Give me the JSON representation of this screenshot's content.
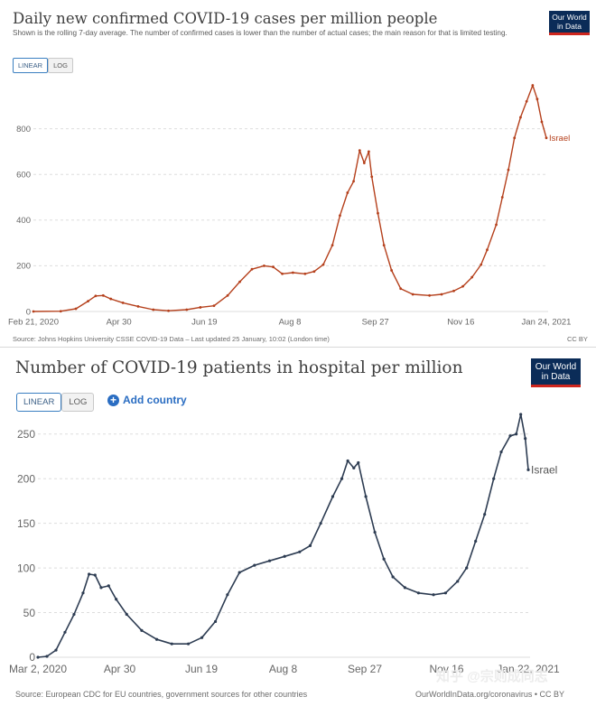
{
  "chart_data": [
    {
      "type": "line",
      "title": "Daily new confirmed COVID-19 cases per million people",
      "subtitle": "Shown is the rolling 7-day average. The number of confirmed cases is lower than the number of actual cases; the main reason for that is limited testing.",
      "scale_options": [
        "LINEAR",
        "LOG"
      ],
      "selected_scale": "LINEAR",
      "x_tick_labels": [
        "Feb 21, 2020",
        "Apr 30",
        "Jun 19",
        "Aug 8",
        "Sep 27",
        "Nov 16",
        "Jan 24, 2021"
      ],
      "y_ticks": [
        0,
        200,
        400,
        600,
        800
      ],
      "ylim": [
        0,
        1000
      ],
      "grid": "horizontal-dashed",
      "series": [
        {
          "name": "Israel",
          "color": "#b5401c",
          "points": [
            [
              "2020-02-21",
              0
            ],
            [
              "2020-03-10",
              1
            ],
            [
              "2020-03-20",
              12
            ],
            [
              "2020-03-28",
              45
            ],
            [
              "2020-04-02",
              68
            ],
            [
              "2020-04-07",
              70
            ],
            [
              "2020-04-12",
              55
            ],
            [
              "2020-04-20",
              38
            ],
            [
              "2020-04-30",
              22
            ],
            [
              "2020-05-10",
              8
            ],
            [
              "2020-05-20",
              3
            ],
            [
              "2020-06-01",
              8
            ],
            [
              "2020-06-10",
              18
            ],
            [
              "2020-06-19",
              25
            ],
            [
              "2020-06-28",
              70
            ],
            [
              "2020-07-06",
              130
            ],
            [
              "2020-07-14",
              185
            ],
            [
              "2020-07-22",
              200
            ],
            [
              "2020-07-28",
              195
            ],
            [
              "2020-08-03",
              165
            ],
            [
              "2020-08-10",
              170
            ],
            [
              "2020-08-18",
              165
            ],
            [
              "2020-08-24",
              175
            ],
            [
              "2020-08-30",
              205
            ],
            [
              "2020-09-05",
              290
            ],
            [
              "2020-09-10",
              420
            ],
            [
              "2020-09-15",
              520
            ],
            [
              "2020-09-19",
              570
            ],
            [
              "2020-09-23",
              705
            ],
            [
              "2020-09-26",
              650
            ],
            [
              "2020-09-29",
              700
            ],
            [
              "2020-10-01",
              590
            ],
            [
              "2020-10-05",
              430
            ],
            [
              "2020-10-09",
              290
            ],
            [
              "2020-10-14",
              180
            ],
            [
              "2020-10-20",
              100
            ],
            [
              "2020-10-28",
              75
            ],
            [
              "2020-11-08",
              70
            ],
            [
              "2020-11-16",
              75
            ],
            [
              "2020-11-24",
              90
            ],
            [
              "2020-11-30",
              110
            ],
            [
              "2020-12-06",
              150
            ],
            [
              "2020-12-12",
              205
            ],
            [
              "2020-12-16",
              270
            ],
            [
              "2020-12-22",
              380
            ],
            [
              "2020-12-26",
              500
            ],
            [
              "2020-12-30",
              620
            ],
            [
              "2021-01-03",
              760
            ],
            [
              "2021-01-07",
              850
            ],
            [
              "2021-01-11",
              920
            ],
            [
              "2021-01-15",
              990
            ],
            [
              "2021-01-18",
              930
            ],
            [
              "2021-01-21",
              830
            ],
            [
              "2021-01-24",
              760
            ]
          ]
        }
      ],
      "source": "Source: Johns Hopkins University CSSE COVID-19 Data – Last updated 25 January, 10:02 (London time)",
      "license": "CC BY"
    },
    {
      "type": "line",
      "title": "Number of COVID-19 patients in hospital per million",
      "scale_options": [
        "LINEAR",
        "LOG"
      ],
      "selected_scale": "LINEAR",
      "x_tick_labels": [
        "Mar 2, 2020",
        "Apr 30",
        "Jun 19",
        "Aug 8",
        "Sep 27",
        "Nov 16",
        "Jan 22, 2021"
      ],
      "y_ticks": [
        0,
        50,
        100,
        150,
        200,
        250
      ],
      "ylim": [
        0,
        270
      ],
      "grid": "horizontal-dashed",
      "series": [
        {
          "name": "Israel",
          "color": "#2d3c52",
          "points": [
            [
              "2020-03-02",
              0
            ],
            [
              "2020-03-08",
              1
            ],
            [
              "2020-03-14",
              8
            ],
            [
              "2020-03-20",
              28
            ],
            [
              "2020-03-26",
              48
            ],
            [
              "2020-04-01",
              72
            ],
            [
              "2020-04-05",
              93
            ],
            [
              "2020-04-09",
              92
            ],
            [
              "2020-04-13",
              78
            ],
            [
              "2020-04-18",
              80
            ],
            [
              "2020-04-23",
              65
            ],
            [
              "2020-04-30",
              48
            ],
            [
              "2020-05-10",
              30
            ],
            [
              "2020-05-20",
              20
            ],
            [
              "2020-05-30",
              15
            ],
            [
              "2020-06-10",
              15
            ],
            [
              "2020-06-19",
              22
            ],
            [
              "2020-06-28",
              40
            ],
            [
              "2020-07-06",
              70
            ],
            [
              "2020-07-14",
              95
            ],
            [
              "2020-07-24",
              103
            ],
            [
              "2020-08-03",
              108
            ],
            [
              "2020-08-13",
              113
            ],
            [
              "2020-08-23",
              118
            ],
            [
              "2020-08-30",
              125
            ],
            [
              "2020-09-06",
              150
            ],
            [
              "2020-09-14",
              180
            ],
            [
              "2020-09-20",
              200
            ],
            [
              "2020-09-24",
              220
            ],
            [
              "2020-09-28",
              212
            ],
            [
              "2020-10-01",
              218
            ],
            [
              "2020-10-06",
              180
            ],
            [
              "2020-10-12",
              140
            ],
            [
              "2020-10-18",
              110
            ],
            [
              "2020-10-24",
              90
            ],
            [
              "2020-11-01",
              78
            ],
            [
              "2020-11-10",
              72
            ],
            [
              "2020-11-20",
              70
            ],
            [
              "2020-11-28",
              72
            ],
            [
              "2020-12-06",
              85
            ],
            [
              "2020-12-12",
              100
            ],
            [
              "2020-12-18",
              130
            ],
            [
              "2020-12-24",
              160
            ],
            [
              "2020-12-30",
              200
            ],
            [
              "2021-01-04",
              230
            ],
            [
              "2021-01-10",
              248
            ],
            [
              "2021-01-14",
              250
            ],
            [
              "2021-01-17",
              272
            ],
            [
              "2021-01-20",
              245
            ],
            [
              "2021-01-22",
              210
            ]
          ]
        }
      ],
      "add_country_label": "Add country",
      "source": "Source: European CDC for EU countries, government sources for other countries",
      "license": "OurWorldInData.org/coronavirus • CC BY"
    }
  ],
  "logo_text": [
    "Our World",
    "in Data"
  ],
  "watermark": "知乎 @宗则成同志"
}
